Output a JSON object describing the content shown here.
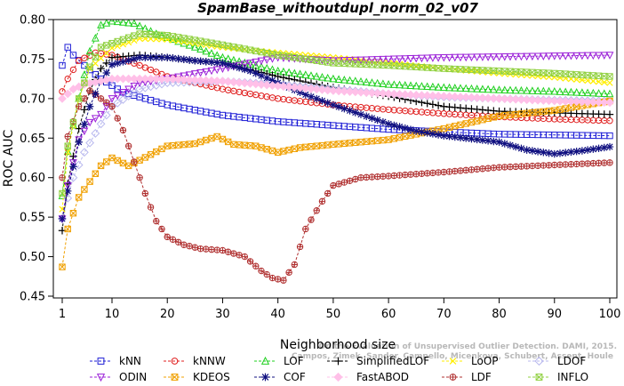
{
  "chart_data": {
    "type": "line",
    "title": "SpamBase_withoutdupl_norm_02_v07",
    "xlabel": "Neighborhood size",
    "ylabel": "ROC AUC",
    "xlim": [
      1,
      100
    ],
    "ylim": [
      0.45,
      0.8
    ],
    "xticks": [
      1,
      10,
      20,
      30,
      40,
      50,
      60,
      70,
      80,
      90,
      100
    ],
    "yticks": [
      0.45,
      0.5,
      0.55,
      0.6,
      0.65,
      0.7,
      0.75,
      0.8
    ],
    "ytick_labels": [
      "0.45",
      "0.50",
      "0.55",
      "0.60",
      "0.65",
      "0.70",
      "0.75",
      "0.80"
    ],
    "grid": false,
    "legend_position": "bottom",
    "watermark": [
      "Campos, Zimek, Sander, Campello, Micenkova, Schubert, Assent, Houle",
      "On the Evaluation of Unsupervised Outlier Detection. DAMI, 2015."
    ],
    "series": [
      {
        "name": "kNN",
        "color": "#1f1fd6",
        "marker": "square",
        "keypoints": [
          [
            1,
            0.742
          ],
          [
            2,
            0.765
          ],
          [
            3,
            0.755
          ],
          [
            5,
            0.742
          ],
          [
            8,
            0.725
          ],
          [
            12,
            0.708
          ],
          [
            20,
            0.692
          ],
          [
            30,
            0.679
          ],
          [
            40,
            0.671
          ],
          [
            50,
            0.666
          ],
          [
            60,
            0.661
          ],
          [
            70,
            0.658
          ],
          [
            80,
            0.655
          ],
          [
            90,
            0.654
          ],
          [
            100,
            0.653
          ]
        ]
      },
      {
        "name": "kNNW",
        "color": "#e02020",
        "marker": "circle",
        "keypoints": [
          [
            1,
            0.709
          ],
          [
            2,
            0.725
          ],
          [
            4,
            0.748
          ],
          [
            7,
            0.758
          ],
          [
            10,
            0.755
          ],
          [
            15,
            0.742
          ],
          [
            20,
            0.728
          ],
          [
            30,
            0.712
          ],
          [
            40,
            0.7
          ],
          [
            50,
            0.692
          ],
          [
            60,
            0.686
          ],
          [
            70,
            0.681
          ],
          [
            80,
            0.677
          ],
          [
            90,
            0.674
          ],
          [
            100,
            0.672
          ]
        ]
      },
      {
        "name": "LOF",
        "color": "#20d020",
        "marker": "triangle",
        "keypoints": [
          [
            1,
            0.577
          ],
          [
            2,
            0.633
          ],
          [
            4,
            0.7
          ],
          [
            6,
            0.76
          ],
          [
            8,
            0.793
          ],
          [
            10,
            0.798
          ],
          [
            14,
            0.795
          ],
          [
            18,
            0.782
          ],
          [
            25,
            0.765
          ],
          [
            30,
            0.752
          ],
          [
            40,
            0.735
          ],
          [
            50,
            0.725
          ],
          [
            60,
            0.718
          ],
          [
            70,
            0.714
          ],
          [
            80,
            0.711
          ],
          [
            90,
            0.709
          ],
          [
            100,
            0.706
          ]
        ]
      },
      {
        "name": "SimplifiedLOF",
        "color": "#000000",
        "marker": "plus",
        "keypoints": [
          [
            1,
            0.533
          ],
          [
            2,
            0.592
          ],
          [
            4,
            0.662
          ],
          [
            6,
            0.71
          ],
          [
            8,
            0.738
          ],
          [
            10,
            0.752
          ],
          [
            15,
            0.755
          ],
          [
            20,
            0.752
          ],
          [
            25,
            0.748
          ],
          [
            30,
            0.745
          ],
          [
            40,
            0.728
          ],
          [
            50,
            0.714
          ],
          [
            60,
            0.703
          ],
          [
            70,
            0.69
          ],
          [
            80,
            0.684
          ],
          [
            90,
            0.682
          ],
          [
            100,
            0.68
          ]
        ]
      },
      {
        "name": "LoOP",
        "color": "#ffee00",
        "marker": "x",
        "keypoints": [
          [
            1,
            0.56
          ],
          [
            2,
            0.632
          ],
          [
            4,
            0.7
          ],
          [
            6,
            0.738
          ],
          [
            10,
            0.764
          ],
          [
            15,
            0.776
          ],
          [
            20,
            0.775
          ],
          [
            30,
            0.765
          ],
          [
            40,
            0.758
          ],
          [
            50,
            0.752
          ],
          [
            60,
            0.745
          ],
          [
            70,
            0.738
          ],
          [
            80,
            0.732
          ],
          [
            90,
            0.727
          ],
          [
            100,
            0.72
          ]
        ]
      },
      {
        "name": "LDOF",
        "color": "#b8b8ee",
        "marker": "diamond",
        "keypoints": [
          [
            1,
            0.548
          ],
          [
            3,
            0.6
          ],
          [
            5,
            0.632
          ],
          [
            8,
            0.668
          ],
          [
            10,
            0.69
          ],
          [
            15,
            0.712
          ],
          [
            20,
            0.72
          ],
          [
            30,
            0.722
          ],
          [
            40,
            0.718
          ],
          [
            50,
            0.712
          ],
          [
            60,
            0.706
          ],
          [
            70,
            0.702
          ],
          [
            80,
            0.7
          ],
          [
            90,
            0.698
          ],
          [
            100,
            0.697
          ]
        ]
      },
      {
        "name": "ODIN",
        "color": "#9b20d8",
        "marker": "triangle-down",
        "keypoints": [
          [
            1,
            0.548
          ],
          [
            2,
            0.59
          ],
          [
            4,
            0.648
          ],
          [
            6,
            0.67
          ],
          [
            8,
            0.68
          ],
          [
            10,
            0.7
          ],
          [
            15,
            0.72
          ],
          [
            20,
            0.725
          ],
          [
            30,
            0.738
          ],
          [
            40,
            0.752
          ],
          [
            50,
            0.748
          ],
          [
            60,
            0.75
          ],
          [
            70,
            0.752
          ],
          [
            80,
            0.753
          ],
          [
            90,
            0.754
          ],
          [
            100,
            0.755
          ]
        ]
      },
      {
        "name": "KDEOS",
        "color": "#f0a000",
        "marker": "square-x",
        "keypoints": [
          [
            1,
            0.487
          ],
          [
            2,
            0.535
          ],
          [
            4,
            0.575
          ],
          [
            6,
            0.595
          ],
          [
            8,
            0.615
          ],
          [
            10,
            0.625
          ],
          [
            13,
            0.615
          ],
          [
            15,
            0.622
          ],
          [
            20,
            0.64
          ],
          [
            25,
            0.643
          ],
          [
            29,
            0.652
          ],
          [
            32,
            0.642
          ],
          [
            36,
            0.64
          ],
          [
            40,
            0.632
          ],
          [
            44,
            0.638
          ],
          [
            50,
            0.642
          ],
          [
            60,
            0.648
          ],
          [
            70,
            0.662
          ],
          [
            80,
            0.678
          ],
          [
            90,
            0.685
          ],
          [
            100,
            0.697
          ]
        ]
      },
      {
        "name": "LDF",
        "color": "#b03030",
        "marker": "circle-plus",
        "keypoints": [
          [
            1,
            0.6
          ],
          [
            2,
            0.652
          ],
          [
            4,
            0.69
          ],
          [
            6,
            0.71
          ],
          [
            8,
            0.7
          ],
          [
            10,
            0.69
          ],
          [
            12,
            0.66
          ],
          [
            14,
            0.62
          ],
          [
            16,
            0.58
          ],
          [
            18,
            0.545
          ],
          [
            20,
            0.525
          ],
          [
            23,
            0.515
          ],
          [
            26,
            0.51
          ],
          [
            30,
            0.508
          ],
          [
            34,
            0.5
          ],
          [
            37,
            0.482
          ],
          [
            39,
            0.473
          ],
          [
            41,
            0.47
          ],
          [
            43,
            0.49
          ],
          [
            45,
            0.535
          ],
          [
            48,
            0.57
          ],
          [
            50,
            0.59
          ],
          [
            55,
            0.6
          ],
          [
            60,
            0.602
          ],
          [
            70,
            0.607
          ],
          [
            80,
            0.613
          ],
          [
            90,
            0.616
          ],
          [
            100,
            0.619
          ]
        ]
      },
      {
        "name": "COF",
        "color": "#101080",
        "marker": "star",
        "keypoints": [
          [
            1,
            0.548
          ],
          [
            2,
            0.583
          ],
          [
            4,
            0.645
          ],
          [
            6,
            0.69
          ],
          [
            8,
            0.722
          ],
          [
            10,
            0.743
          ],
          [
            15,
            0.752
          ],
          [
            20,
            0.752
          ],
          [
            25,
            0.748
          ],
          [
            30,
            0.745
          ],
          [
            35,
            0.735
          ],
          [
            40,
            0.72
          ],
          [
            45,
            0.705
          ],
          [
            50,
            0.692
          ],
          [
            55,
            0.68
          ],
          [
            60,
            0.668
          ],
          [
            65,
            0.659
          ],
          [
            70,
            0.653
          ],
          [
            80,
            0.645
          ],
          [
            85,
            0.635
          ],
          [
            90,
            0.63
          ],
          [
            95,
            0.634
          ],
          [
            100,
            0.639
          ]
        ]
      },
      {
        "name": "FastABOD",
        "color": "#ffc0e8",
        "marker": "diamond-filled",
        "keypoints": [
          [
            1,
            0.7
          ],
          [
            3,
            0.712
          ],
          [
            5,
            0.718
          ],
          [
            10,
            0.725
          ],
          [
            20,
            0.725
          ],
          [
            30,
            0.722
          ],
          [
            40,
            0.716
          ],
          [
            50,
            0.71
          ],
          [
            60,
            0.706
          ],
          [
            70,
            0.703
          ],
          [
            80,
            0.7
          ],
          [
            90,
            0.697
          ],
          [
            100,
            0.695
          ]
        ]
      },
      {
        "name": "INFLO",
        "color": "#90d040",
        "marker": "square-x",
        "keypoints": [
          [
            1,
            0.58
          ],
          [
            2,
            0.64
          ],
          [
            4,
            0.7
          ],
          [
            6,
            0.74
          ],
          [
            8,
            0.765
          ],
          [
            10,
            0.77
          ],
          [
            15,
            0.782
          ],
          [
            20,
            0.78
          ],
          [
            30,
            0.768
          ],
          [
            40,
            0.755
          ],
          [
            50,
            0.745
          ],
          [
            60,
            0.742
          ],
          [
            70,
            0.738
          ],
          [
            80,
            0.735
          ],
          [
            90,
            0.732
          ],
          [
            100,
            0.728
          ]
        ]
      }
    ]
  },
  "legend_layout": [
    [
      "kNN",
      "kNNW",
      "LOF",
      "SimplifiedLOF",
      "LoOP",
      "LDOF"
    ],
    [
      "ODIN",
      "KDEOS",
      "COF",
      "FastABOD",
      "LDF",
      "INFLO"
    ]
  ]
}
